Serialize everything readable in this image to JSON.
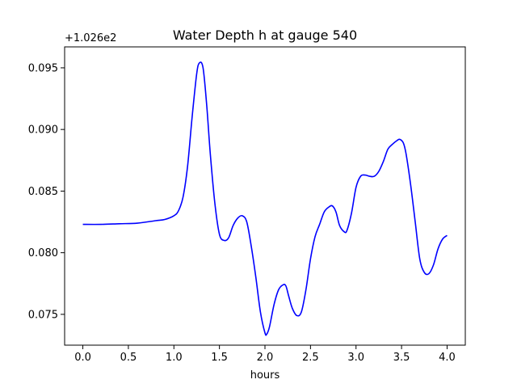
{
  "chart_data": {
    "type": "line",
    "title": "Water Depth h at gauge 540",
    "xlabel": "hours",
    "ylabel": "",
    "offset_label": "+1.026e2",
    "xlim": [
      -0.2,
      4.2
    ],
    "ylim": [
      0.0725,
      0.0967
    ],
    "x_ticks": [
      0.0,
      0.5,
      1.0,
      1.5,
      2.0,
      2.5,
      3.0,
      3.5,
      4.0
    ],
    "x_tick_labels": [
      "0.0",
      "0.5",
      "1.0",
      "1.5",
      "2.0",
      "2.5",
      "3.0",
      "3.5",
      "4.0"
    ],
    "y_ticks": [
      0.075,
      0.08,
      0.085,
      0.09,
      0.095
    ],
    "y_tick_labels": [
      "0.075",
      "0.080",
      "0.085",
      "0.090",
      "0.095"
    ],
    "grid": false,
    "series": [
      {
        "color": "#0000ff",
        "x": [
          0.0,
          0.2,
          0.4,
          0.6,
          0.8,
          0.9,
          1.0,
          1.05,
          1.1,
          1.15,
          1.2,
          1.25,
          1.28,
          1.32,
          1.36,
          1.4,
          1.45,
          1.5,
          1.55,
          1.6,
          1.65,
          1.7,
          1.75,
          1.8,
          1.85,
          1.9,
          1.95,
          2.0,
          2.02,
          2.05,
          2.1,
          2.15,
          2.2,
          2.23,
          2.26,
          2.3,
          2.35,
          2.4,
          2.45,
          2.5,
          2.55,
          2.6,
          2.65,
          2.7,
          2.74,
          2.78,
          2.82,
          2.87,
          2.9,
          2.95,
          3.0,
          3.05,
          3.1,
          3.15,
          3.2,
          3.25,
          3.3,
          3.35,
          3.4,
          3.45,
          3.48,
          3.52,
          3.55,
          3.6,
          3.65,
          3.7,
          3.75,
          3.8,
          3.85,
          3.9,
          3.95,
          4.0
        ],
        "y": [
          0.0823,
          0.0823,
          0.08235,
          0.0824,
          0.0826,
          0.0827,
          0.083,
          0.0834,
          0.0845,
          0.087,
          0.091,
          0.0945,
          0.0954,
          0.095,
          0.092,
          0.088,
          0.084,
          0.0815,
          0.081,
          0.0812,
          0.0822,
          0.0828,
          0.083,
          0.0825,
          0.0805,
          0.078,
          0.0752,
          0.0735,
          0.0734,
          0.074,
          0.0758,
          0.077,
          0.0774,
          0.0773,
          0.0765,
          0.0755,
          0.0749,
          0.0752,
          0.077,
          0.0795,
          0.0813,
          0.0823,
          0.0833,
          0.0837,
          0.0838,
          0.0833,
          0.0822,
          0.0817,
          0.0818,
          0.0832,
          0.0853,
          0.0862,
          0.0863,
          0.0862,
          0.0862,
          0.0866,
          0.0874,
          0.0884,
          0.0888,
          0.0891,
          0.0892,
          0.0889,
          0.088,
          0.0855,
          0.0825,
          0.0795,
          0.0784,
          0.0783,
          0.079,
          0.0803,
          0.0811,
          0.0814
        ]
      }
    ]
  }
}
